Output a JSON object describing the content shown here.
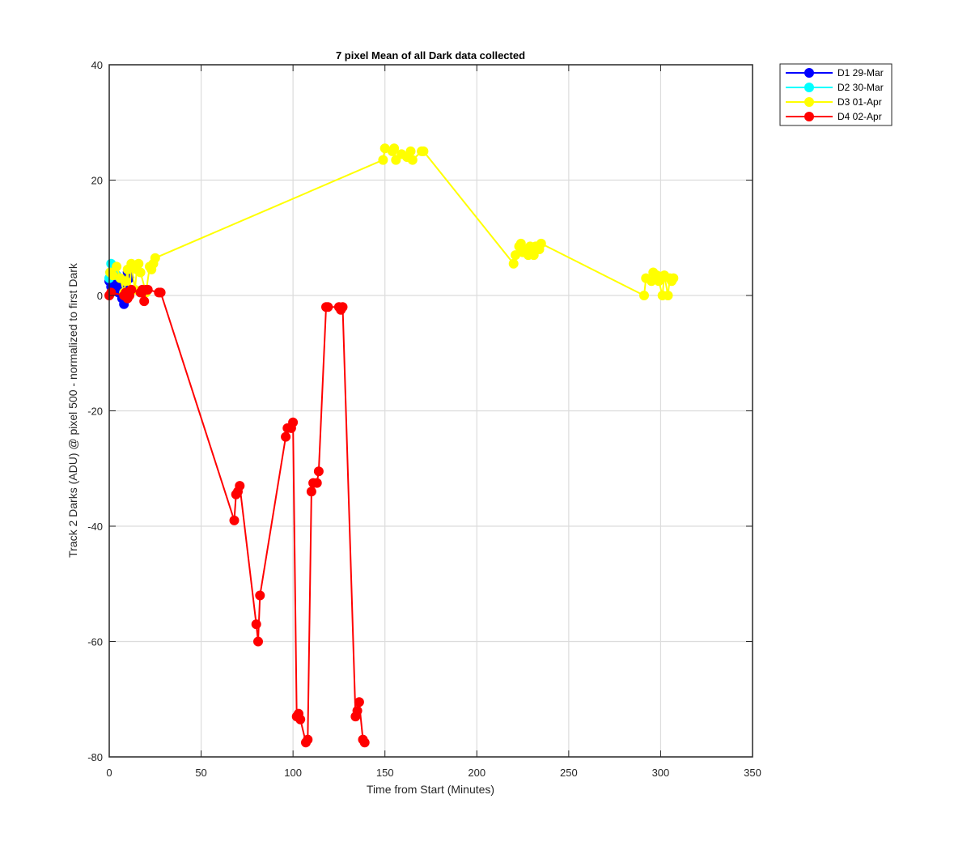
{
  "chart_data": {
    "type": "line",
    "title": "7 pixel Mean of all Dark data collected",
    "xlabel": "Time from Start (Minutes)",
    "ylabel": "Track 2 Darks (ADU) @ pixel 500 - normalized to first Dark",
    "xlim": [
      0,
      350
    ],
    "ylim": [
      -80,
      40
    ],
    "x_ticks": [
      0,
      50,
      100,
      150,
      200,
      250,
      300,
      350
    ],
    "y_ticks": [
      -80,
      -60,
      -40,
      -20,
      0,
      20,
      40
    ],
    "grid": true,
    "legend_position": "outside top-right",
    "marker": "circle",
    "series": [
      {
        "name": "D1 29-Mar",
        "color": "#0000ff",
        "x": [
          0,
          1,
          2,
          3,
          4,
          5,
          6,
          7,
          8,
          9,
          10,
          11
        ],
        "y": [
          2.5,
          1.5,
          3.0,
          2.0,
          3.5,
          0.5,
          2.5,
          -0.5,
          -1.5,
          1.0,
          4.0,
          3.0
        ]
      },
      {
        "name": "D2 30-Mar",
        "color": "#00ffff",
        "x": [
          0,
          0.5,
          1,
          2,
          3,
          4
        ],
        "y": [
          3.0,
          4.0,
          5.5,
          4.5,
          5.0,
          3.5
        ]
      },
      {
        "name": "D3 01-Apr",
        "color": "#ffff00",
        "x": [
          0.5,
          2,
          4,
          6,
          8,
          9,
          10,
          11,
          12,
          14,
          15,
          16,
          17,
          20,
          22,
          23,
          24,
          25,
          149,
          150,
          154,
          155,
          156,
          159,
          162,
          164,
          165,
          170,
          171,
          220,
          221,
          223,
          224,
          225,
          227,
          228,
          229,
          231,
          232,
          234,
          235,
          291,
          292,
          295,
          296,
          298,
          299,
          301,
          302,
          304,
          305,
          306,
          307
        ],
        "y": [
          4.0,
          3.5,
          5.0,
          3.0,
          0.5,
          2.5,
          4.5,
          0.0,
          5.5,
          1.0,
          4.5,
          5.5,
          4.0,
          0.5,
          5.0,
          4.5,
          5.5,
          6.5,
          23.5,
          25.5,
          25.0,
          25.5,
          23.5,
          24.5,
          24.0,
          25.0,
          23.5,
          25.0,
          25.0,
          5.5,
          7.0,
          8.5,
          9.0,
          7.5,
          8.0,
          7.0,
          8.5,
          7.0,
          8.5,
          8.0,
          9.0,
          0.0,
          3.0,
          2.5,
          4.0,
          3.5,
          2.5,
          0.0,
          3.5,
          0.0,
          3.0,
          2.5,
          3.0
        ]
      },
      {
        "name": "D4 02-Apr",
        "color": "#ff0000",
        "x": [
          0,
          1,
          8,
          9,
          10,
          11,
          12,
          17,
          18,
          19,
          20,
          21,
          27,
          28,
          68,
          69,
          70,
          71,
          80,
          81,
          82,
          96,
          97,
          99,
          100,
          102,
          103,
          104,
          107,
          108,
          110,
          111,
          113,
          114,
          118,
          119,
          125,
          126,
          127,
          134,
          135,
          136,
          138,
          139
        ],
        "y": [
          0.0,
          0.5,
          0.0,
          0.5,
          -0.5,
          0.0,
          1.0,
          0.5,
          1.0,
          -1.0,
          1.0,
          1.0,
          0.5,
          0.5,
          -39.0,
          -34.5,
          -34.0,
          -33.0,
          -57.0,
          -60.0,
          -52.0,
          -24.5,
          -23.0,
          -23.0,
          -22.0,
          -73.0,
          -72.5,
          -73.5,
          -77.5,
          -77.0,
          -34.0,
          -32.5,
          -32.5,
          -30.5,
          -2.0,
          -2.0,
          -2.0,
          -2.5,
          -2.0,
          -73.0,
          -72.0,
          -70.5,
          -77.0,
          -77.5
        ]
      }
    ]
  }
}
